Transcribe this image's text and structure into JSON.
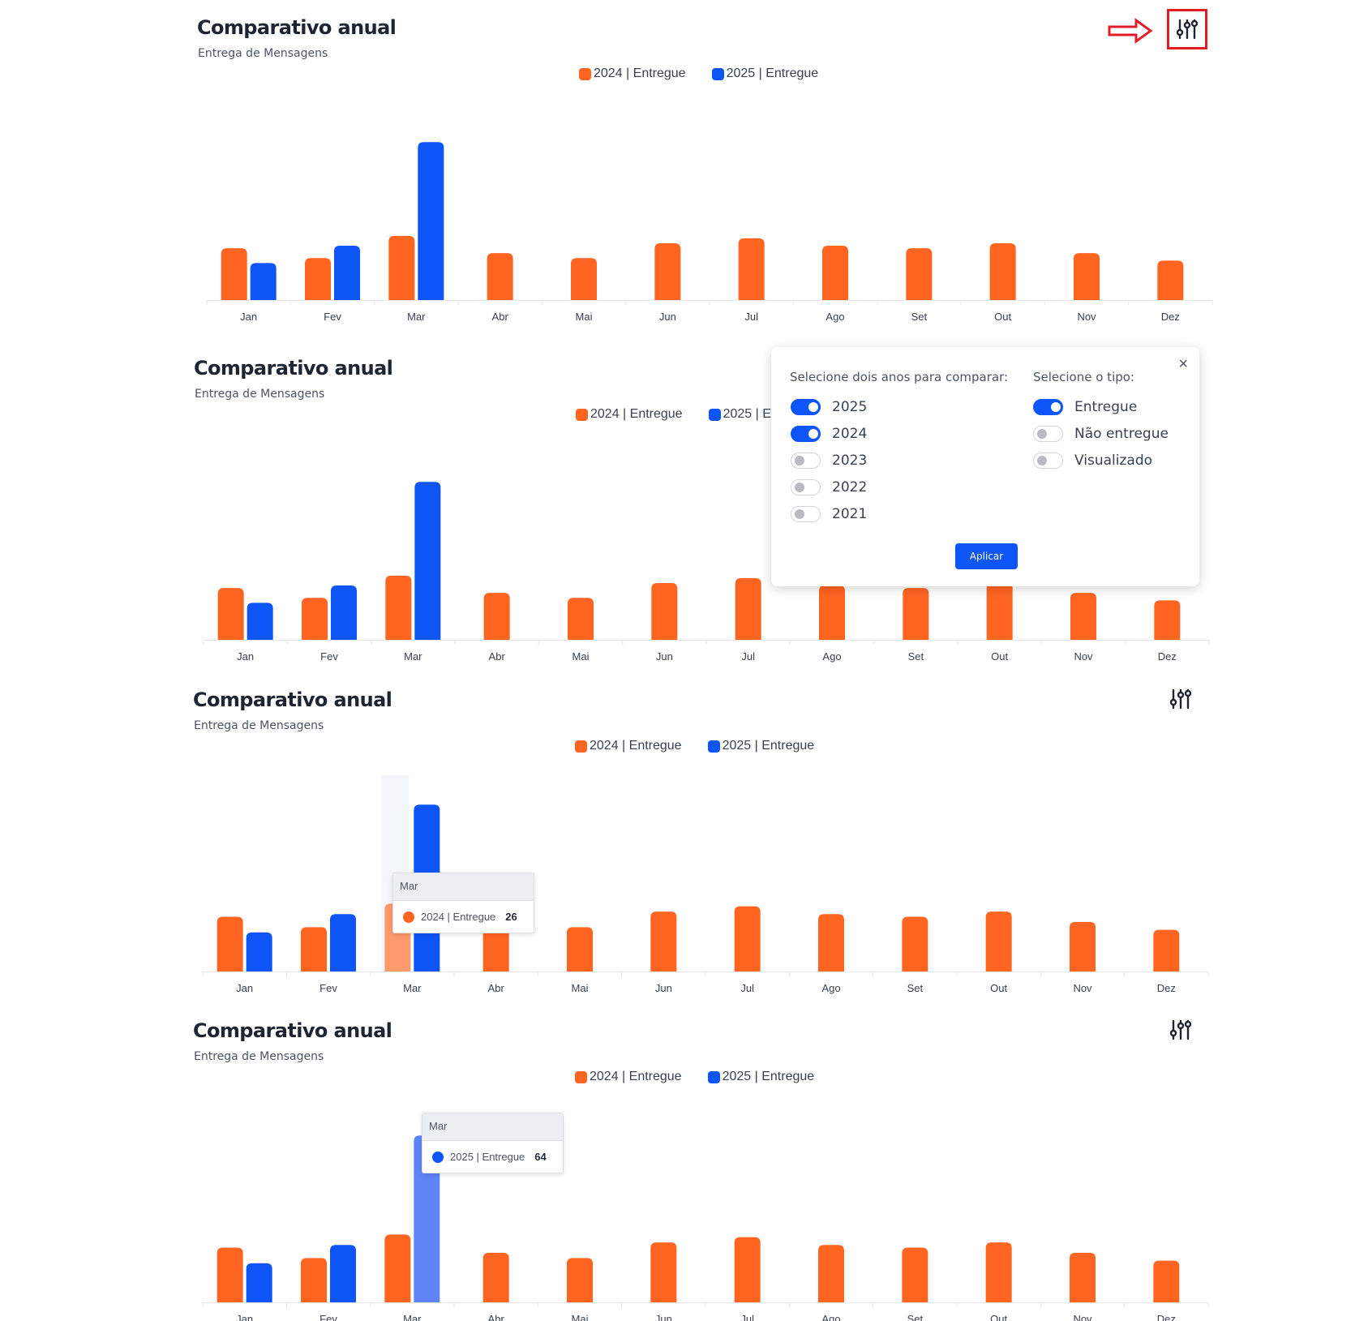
{
  "colors": {
    "series_2024": "#ff6420",
    "series_2025": "#0d55f6",
    "series_2025_hover": "#5f84f6",
    "series_2024_hover": "#fb9a6c",
    "highlight_box": "#e11d2a"
  },
  "icons": {
    "filter": "sliders-icon",
    "annotation": "right-arrow-icon",
    "close": "close-icon"
  },
  "panels": [
    {
      "title": "Comparativo anual",
      "subtitle": "Entrega de Mensagens",
      "legend": [
        {
          "label": "2024 | Entregue"
        },
        {
          "label": "2025 | Entregue"
        }
      ],
      "show_filter_button": true,
      "filter_highlighted": true
    },
    {
      "title": "Comparativo anual",
      "subtitle": "Entrega de Mensagens",
      "legend": [
        {
          "label": "2024 | Entregue"
        },
        {
          "label": "2025 | Entregue"
        }
      ],
      "show_filter_button": false
    },
    {
      "title": "Comparativo anual",
      "subtitle": "Entrega de Mensagens",
      "legend": [
        {
          "label": "2024 | Entregue"
        },
        {
          "label": "2025 | Entregue"
        }
      ],
      "show_filter_button": true,
      "tooltip": {
        "category": "Mar",
        "series": "2024 | Entregue",
        "value": "26"
      }
    },
    {
      "title": "Comparativo anual",
      "subtitle": "Entrega de Mensagens",
      "legend": [
        {
          "label": "2024 | Entregue"
        },
        {
          "label": "2025 | Entregue"
        }
      ],
      "show_filter_button": true,
      "tooltip": {
        "category": "Mar",
        "series": "2025 | Entregue",
        "value": "64"
      }
    }
  ],
  "filter_popover": {
    "years_label": "Selecione dois anos para comparar:",
    "types_label": "Selecione o tipo:",
    "years": [
      {
        "label": "2025",
        "checked": true
      },
      {
        "label": "2024",
        "checked": true
      },
      {
        "label": "2023",
        "checked": false
      },
      {
        "label": "2022",
        "checked": false
      },
      {
        "label": "2021",
        "checked": false
      }
    ],
    "types": [
      {
        "label": "Entregue",
        "checked": true
      },
      {
        "label": "Não entregue",
        "checked": false
      },
      {
        "label": "Visualizado",
        "checked": false
      }
    ],
    "apply_label": "Aplicar",
    "close_symbol": "×"
  },
  "chart_data": {
    "type": "bar",
    "categories": [
      "Jan",
      "Fev",
      "Mar",
      "Abr",
      "Mai",
      "Jun",
      "Jul",
      "Ago",
      "Set",
      "Out",
      "Nov",
      "Dez"
    ],
    "series": [
      {
        "name": "2024 | Entregue",
        "values": [
          21,
          17,
          26,
          19,
          17,
          23,
          25,
          22,
          21,
          23,
          19,
          16
        ]
      },
      {
        "name": "2025 | Entregue",
        "values": [
          15,
          22,
          64,
          null,
          null,
          null,
          null,
          null,
          null,
          null,
          null,
          null
        ]
      }
    ],
    "ylim": [
      0,
      70
    ],
    "grid": false,
    "legend_position": "top-center"
  }
}
